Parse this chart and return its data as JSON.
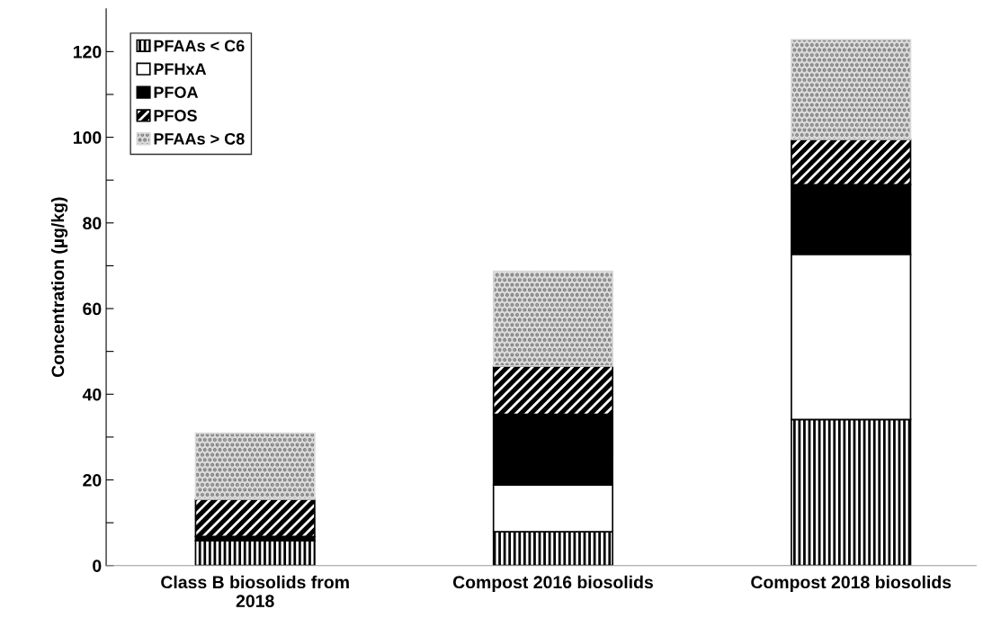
{
  "chart_data": {
    "type": "bar",
    "stacked": true,
    "ylabel": "Concentration (µg/kg)",
    "categories": [
      "Class B biosolids from\n2018",
      "Compost 2016 biosolids",
      "Compost 2018 biosolids"
    ],
    "series": [
      {
        "name": "PFAAs < C6",
        "color": "#000000",
        "values": [
          5.8,
          7.9,
          34.1
        ]
      },
      {
        "name": "PFHxA",
        "color": "#ffffff",
        "values": [
          0,
          10.9,
          38.6
        ]
      },
      {
        "name": "PFOA",
        "color": "#000000",
        "values": [
          1.0,
          16.5,
          16.2
        ]
      },
      {
        "name": "PFOS",
        "color": "#000000",
        "values": [
          8.7,
          11.3,
          10.6
        ]
      },
      {
        "name": "PFAAs > C8",
        "color": "#d9d9d9",
        "values": [
          15.4,
          22.1,
          23.3
        ]
      }
    ],
    "ylim": [
      0,
      130
    ],
    "yticks": [
      0,
      {
        "value": 10,
        "label": null
      },
      20,
      {
        "value": 30,
        "label": null
      },
      40,
      {
        "value": 50,
        "label": null
      },
      60,
      {
        "value": 70,
        "label": null
      },
      80,
      {
        "value": 90,
        "label": null
      },
      100,
      {
        "value": 110,
        "label": null
      },
      120
    ],
    "legend": "top left",
    "grid": false
  }
}
